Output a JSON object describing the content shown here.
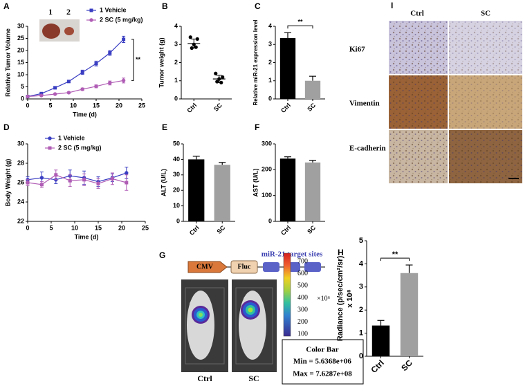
{
  "chart_data": [
    {
      "panel": "A",
      "type": "line",
      "xlabel": "Time (d)",
      "ylabel": "Relative Tumor Volume",
      "x": [
        0,
        3,
        6,
        9,
        12,
        15,
        18,
        21
      ],
      "series": [
        {
          "name": "1 Vehicle",
          "color": "#3a3ec2",
          "marker": "square",
          "values": [
            1,
            2.2,
            4.6,
            7.2,
            11,
            14.6,
            19,
            24.6
          ],
          "errors": [
            0,
            0.3,
            0.4,
            0.5,
            0.9,
            1.0,
            1.0,
            1.3
          ]
        },
        {
          "name": "2 SC (5 mg/kg)",
          "color": "#b05db5",
          "marker": "circle",
          "values": [
            1,
            1.4,
            2.0,
            2.6,
            4.0,
            5.2,
            6.6,
            7.6
          ],
          "errors": [
            0,
            0.2,
            0.3,
            0.3,
            0.5,
            0.6,
            0.8,
            1.0
          ]
        }
      ],
      "xlim": [
        0,
        25
      ],
      "xticks": [
        0,
        5,
        10,
        15,
        20,
        25
      ],
      "ylim": [
        0,
        30
      ],
      "yticks": [
        0,
        5,
        10,
        15,
        20,
        25,
        30
      ],
      "legend": "top-right",
      "annotation": "**",
      "inset_labels": [
        "1",
        "2"
      ]
    },
    {
      "panel": "B",
      "type": "dot",
      "ylabel": "Tumor weight (g)",
      "categories": [
        "Ctrl",
        "SC"
      ],
      "points": [
        [
          3.4,
          3.3,
          3.0,
          2.8,
          2.85
        ],
        [
          1.4,
          1.2,
          1.1,
          0.95,
          0.9
        ]
      ],
      "values": [
        3.05,
        1.1
      ],
      "errors": [
        0.25,
        0.2
      ],
      "color": "#000000",
      "ylim": [
        0,
        4
      ],
      "yticks": [
        0,
        1,
        2,
        3,
        4
      ]
    },
    {
      "panel": "C",
      "type": "bar",
      "ylabel": "Relative miR-21 expression level",
      "categories": [
        "Ctrl",
        "SC"
      ],
      "values": [
        3.35,
        1.0
      ],
      "errors": [
        0.3,
        0.25
      ],
      "colors": [
        "#000000",
        "#a0a0a0"
      ],
      "ylim": [
        0,
        4
      ],
      "yticks": [
        0,
        1,
        2,
        3,
        4
      ],
      "annotation": "**"
    },
    {
      "panel": "D",
      "type": "line",
      "xlabel": "Time (d)",
      "ylabel": "Body Weight (g)",
      "x": [
        0,
        3,
        6,
        9,
        12,
        15,
        18,
        21
      ],
      "series": [
        {
          "name": "1 Vehicle",
          "color": "#3a3ec2",
          "marker": "circle",
          "values": [
            26.3,
            26.5,
            26.3,
            26.7,
            26.5,
            26.1,
            26.5,
            27.0
          ],
          "errors": [
            0.3,
            0.6,
            0.4,
            0.6,
            0.7,
            0.5,
            0.4,
            0.6
          ]
        },
        {
          "name": "2 SC (5 mg/kg)",
          "color": "#b05db5",
          "marker": "square",
          "values": [
            26.0,
            25.8,
            26.8,
            26.2,
            26.3,
            25.9,
            26.4,
            26.0
          ],
          "errors": [
            0.3,
            0.3,
            0.5,
            0.6,
            0.6,
            0.5,
            0.6,
            0.8
          ]
        }
      ],
      "xlim": [
        0,
        25
      ],
      "xticks": [
        0,
        5,
        10,
        15,
        20,
        25
      ],
      "ylim": [
        22,
        30
      ],
      "yticks": [
        22,
        24,
        26,
        28,
        30
      ],
      "legend": "top-left"
    },
    {
      "panel": "E",
      "type": "bar",
      "ylabel": "ALT (U/L)",
      "categories": [
        "Ctrl",
        "SC"
      ],
      "values": [
        40,
        36.5
      ],
      "errors": [
        2,
        1.5
      ],
      "colors": [
        "#000000",
        "#a0a0a0"
      ],
      "ylim": [
        0,
        50
      ],
      "yticks": [
        0,
        10,
        20,
        30,
        40,
        50
      ]
    },
    {
      "panel": "F",
      "type": "bar",
      "ylabel": "AST (U/L)",
      "categories": [
        "Ctrl",
        "SC"
      ],
      "values": [
        243,
        228
      ],
      "errors": [
        7,
        8
      ],
      "colors": [
        "#000000",
        "#a0a0a0"
      ],
      "ylim": [
        0,
        300
      ],
      "yticks": [
        0,
        100,
        200,
        300
      ]
    },
    {
      "panel": "H",
      "type": "bar",
      "ylabel": "Radiance (p/sec/cm²/sr)",
      "ylabel2": "x 10⁸",
      "categories": [
        "Ctrl",
        "SC"
      ],
      "values": [
        1.33,
        3.6
      ],
      "errors": [
        0.22,
        0.35
      ],
      "colors": [
        "#000000",
        "#a0a0a0"
      ],
      "ylim": [
        0,
        5
      ],
      "yticks": [
        0,
        1,
        2,
        3,
        4,
        5
      ],
      "annotation": "**"
    }
  ],
  "panel_g": {
    "panel": "G",
    "construct": [
      "CMV",
      "Fluc"
    ],
    "target_label": "miR-21 target sites",
    "image_labels": [
      "Ctrl",
      "SC"
    ],
    "colorbar_ticks": [
      700,
      600,
      500,
      400,
      300,
      200,
      100
    ],
    "colorbar_unit": "×10⁶",
    "colorbar_title": "Color Bar",
    "colorbar_min": "Min = 5.6368e+06",
    "colorbar_max": "Max = 7.6287e+08"
  },
  "panel_i": {
    "panel": "I",
    "columns": [
      "Ctrl",
      "SC"
    ],
    "rows": [
      "Ki67",
      "Vimentin",
      "E-cadherin"
    ]
  }
}
